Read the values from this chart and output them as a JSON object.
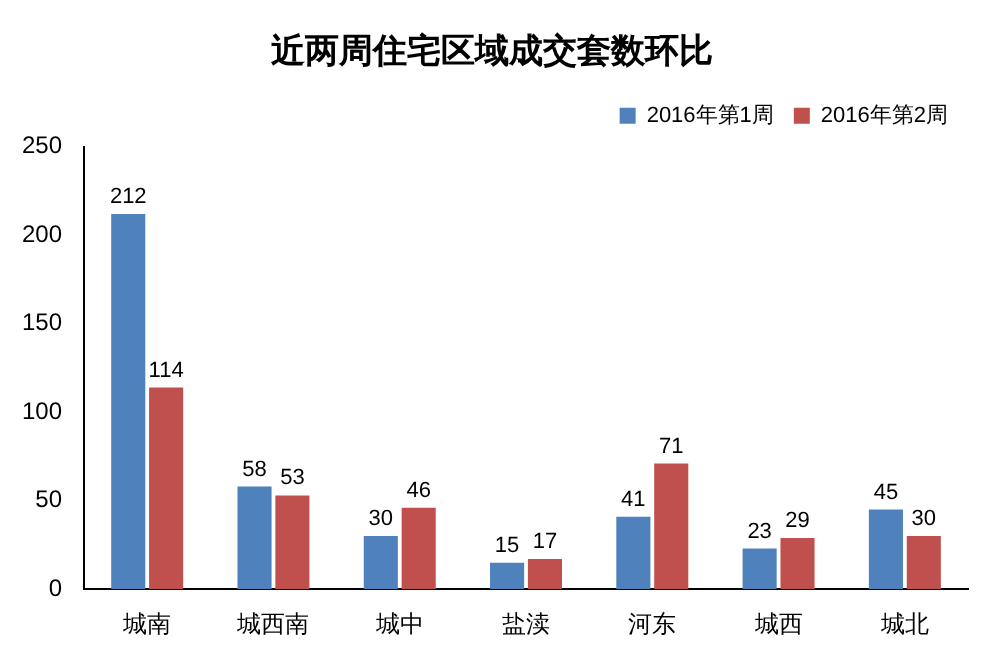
{
  "chart_data": {
    "type": "bar",
    "title": "近两周住宅区域成交套数环比",
    "categories": [
      "城南",
      "城西南",
      "城中",
      "盐渎",
      "河东",
      "城西",
      "城北"
    ],
    "series": [
      {
        "name": "2016年第1周",
        "color": "#4f81bd",
        "values": [
          212,
          58,
          30,
          15,
          41,
          23,
          45
        ]
      },
      {
        "name": "2016年第2周",
        "color": "#c0504d",
        "values": [
          114,
          53,
          46,
          17,
          71,
          29,
          30
        ]
      }
    ],
    "ylim": [
      0,
      250
    ],
    "yticks": [
      0,
      50,
      100,
      150,
      200,
      250
    ],
    "grid": false,
    "legend": "top right",
    "data_labels": true
  }
}
